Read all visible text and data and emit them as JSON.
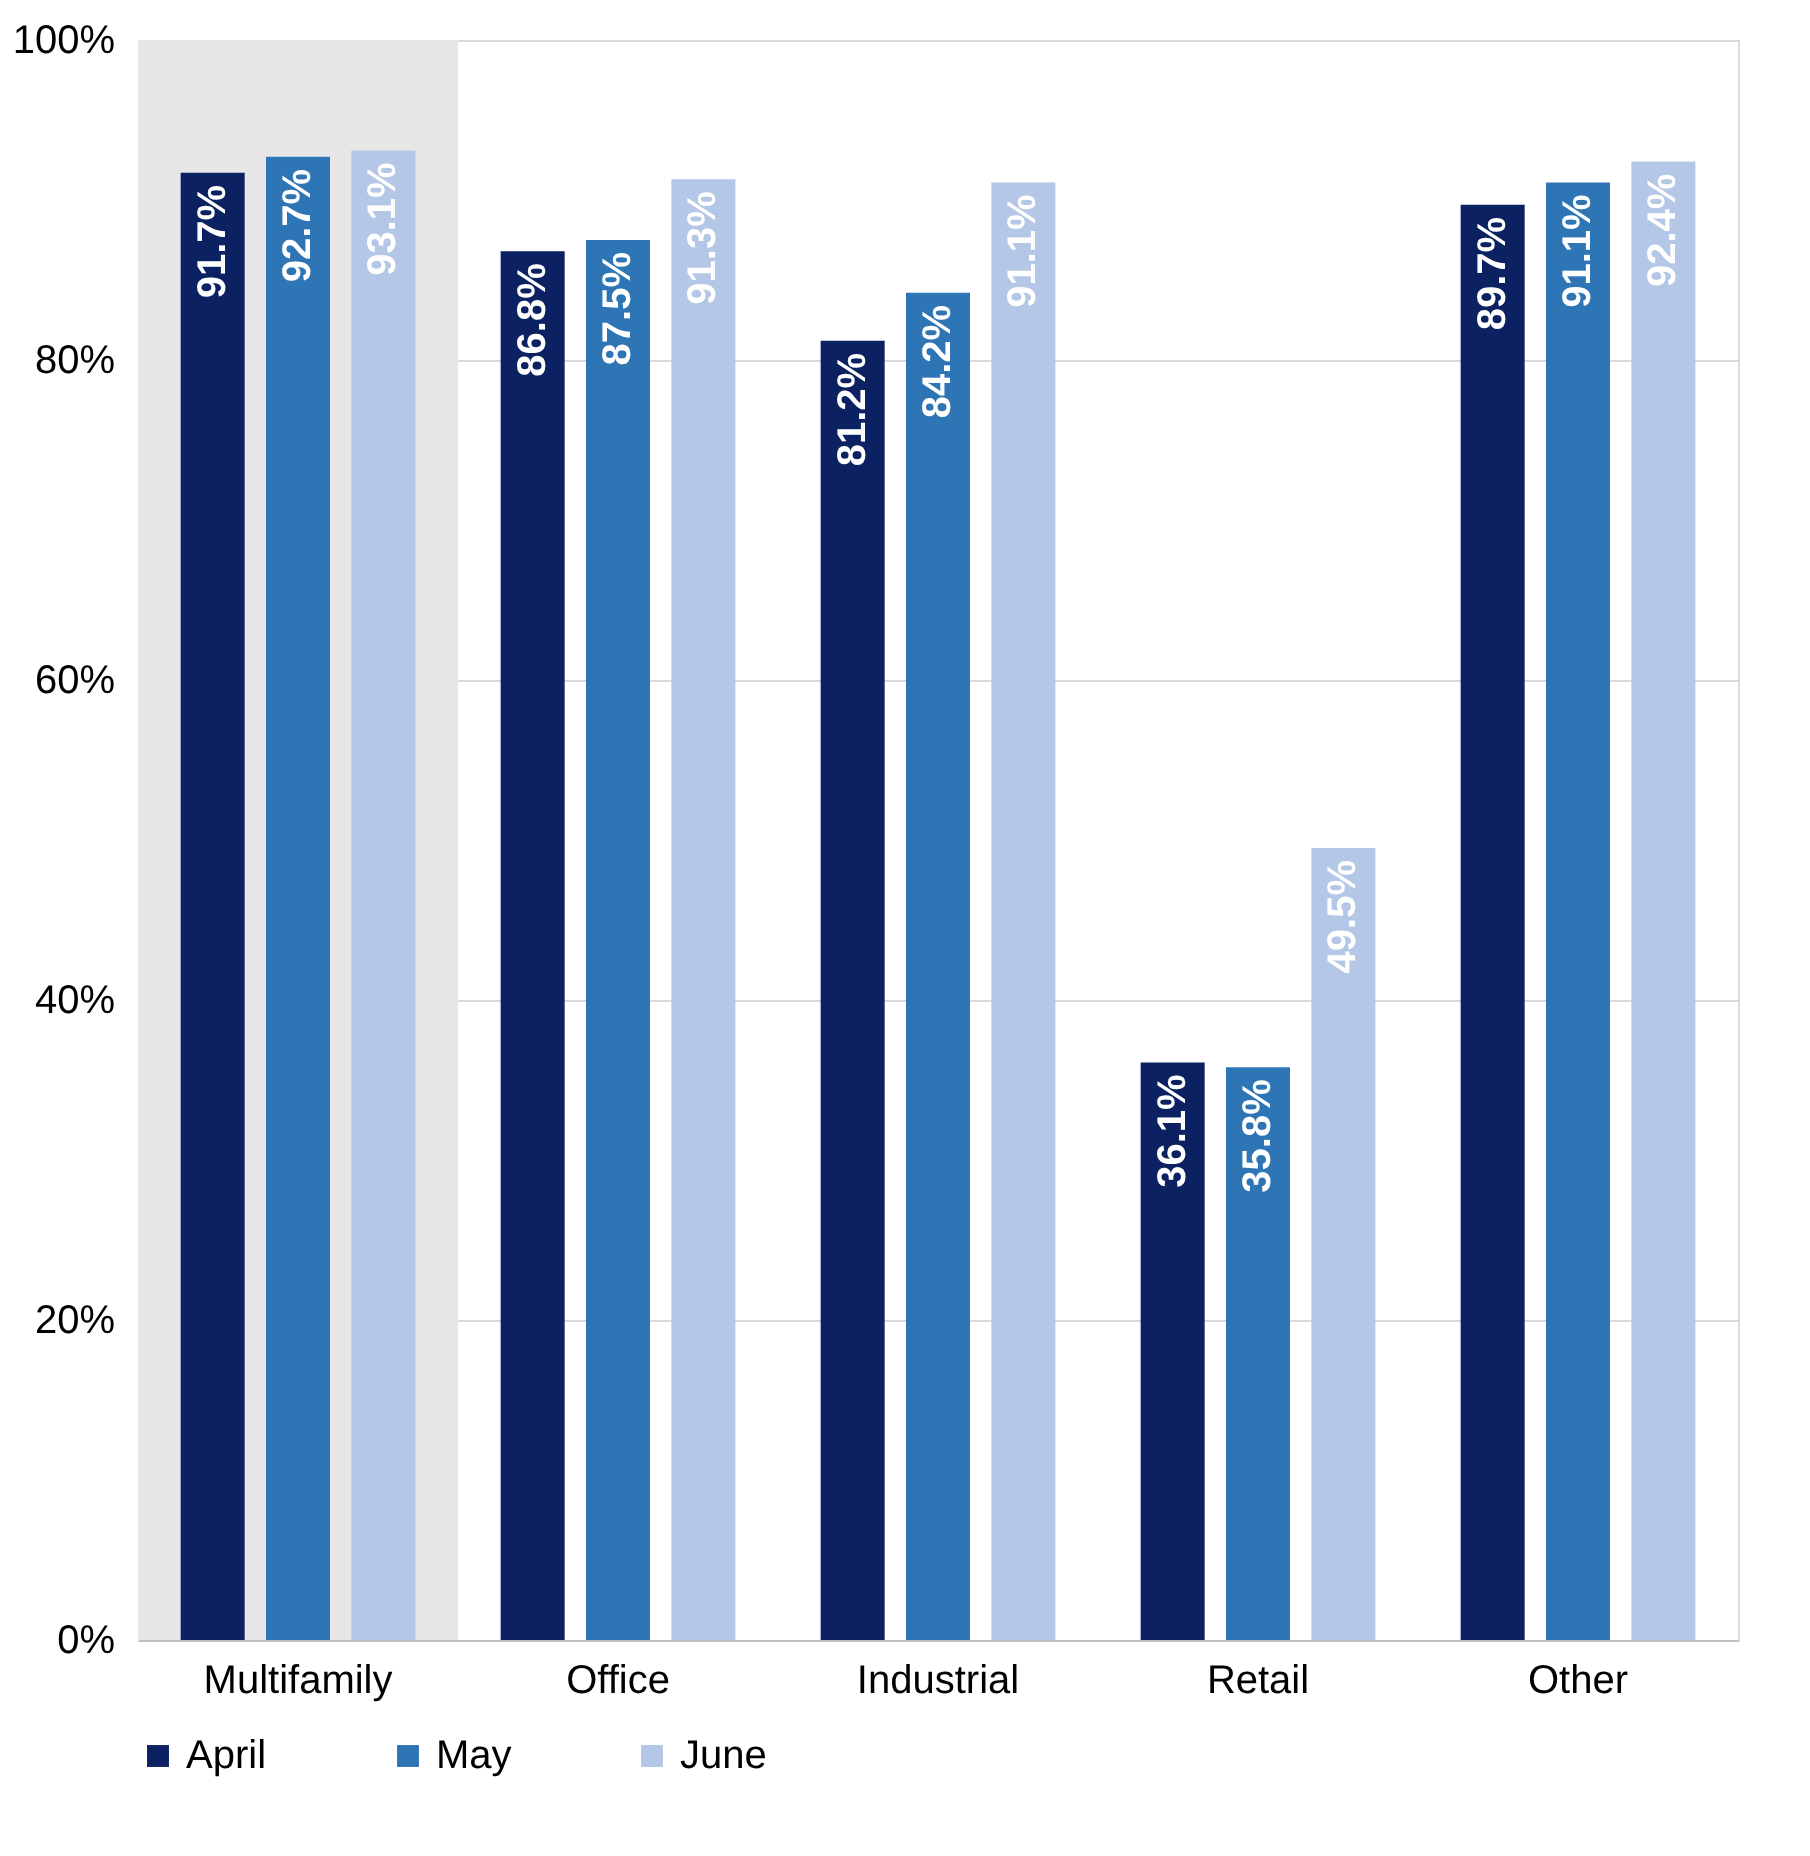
{
  "chart_data": {
    "type": "bar",
    "categories": [
      "Multifamily",
      "Office",
      "Industrial",
      "Retail",
      "Other"
    ],
    "series": [
      {
        "name": "April",
        "color": "#0b2161",
        "values": [
          91.7,
          86.8,
          81.2,
          36.1,
          89.7
        ],
        "value_labels": [
          "91.7%",
          "86.8%",
          "81.2%",
          "36.1%",
          "89.7%"
        ]
      },
      {
        "name": "May",
        "color": "#2e75b6",
        "values": [
          92.7,
          87.5,
          84.2,
          35.8,
          91.1
        ],
        "value_labels": [
          "92.7%",
          "87.5%",
          "84.2%",
          "35.8%",
          "91.1%"
        ]
      },
      {
        "name": "June",
        "color": "#b4c7e7",
        "values": [
          93.1,
          91.3,
          91.1,
          49.5,
          92.4
        ],
        "value_labels": [
          "93.1%",
          "91.3%",
          "91.1%",
          "49.5%",
          "92.4%"
        ]
      }
    ],
    "ylim": [
      0,
      100
    ],
    "yticks": [
      {
        "value": 0,
        "label": "0%"
      },
      {
        "value": 20,
        "label": "20%"
      },
      {
        "value": 40,
        "label": "40%"
      },
      {
        "value": 60,
        "label": "60%"
      },
      {
        "value": 80,
        "label": "80%"
      },
      {
        "value": 100,
        "label": "100%"
      }
    ],
    "bands": [
      {
        "axis": "x",
        "from": "Multifamily",
        "to": "Multifamily",
        "color": "#e7e7e7"
      }
    ],
    "grid": "y",
    "legend": "bottom"
  }
}
